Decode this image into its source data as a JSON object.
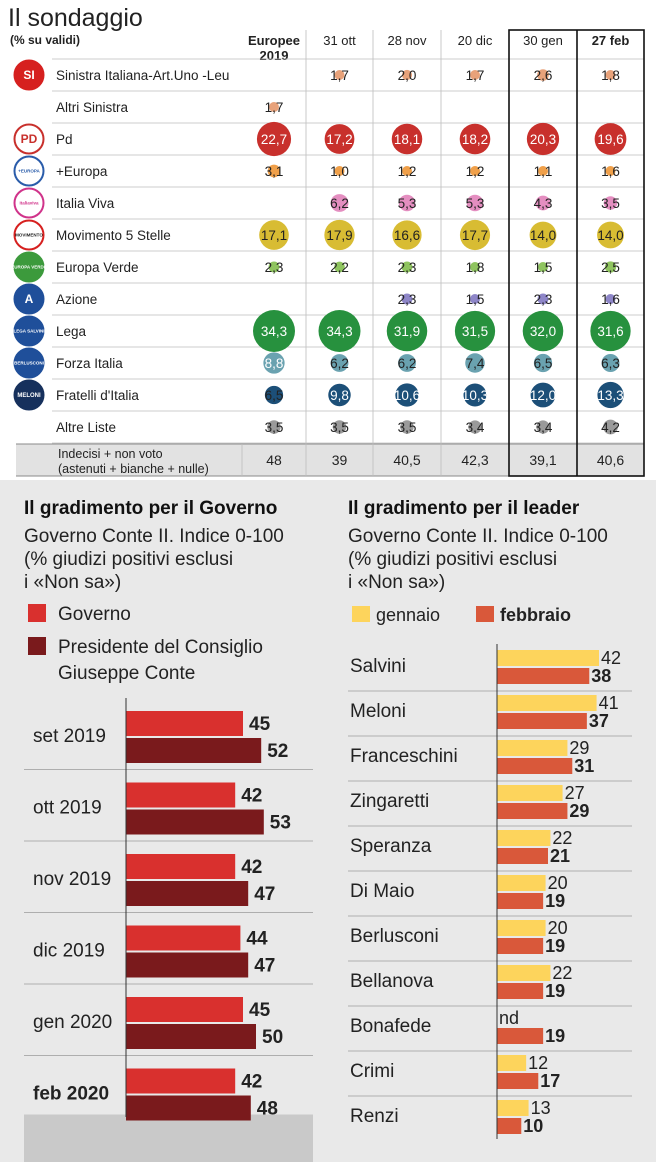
{
  "poll": {
    "title": "Il sondaggio",
    "subtitle": "(% su validi)",
    "columns": [
      {
        "label1": "Europee",
        "label2": "2019"
      },
      {
        "label1": "31 ott",
        "label2": ""
      },
      {
        "label1": "28 nov",
        "label2": ""
      },
      {
        "label1": "20 dic",
        "label2": ""
      },
      {
        "label1": "30 gen",
        "label2": ""
      },
      {
        "label1": "27 feb",
        "label2": ""
      }
    ],
    "parties": [
      {
        "name": "Sinistra Italiana-Art.Uno -Leu",
        "color": "#e8a27a",
        "logo_color": "#d6201f",
        "values": [
          null,
          "1,7",
          "2,0",
          "1,7",
          "2,6",
          "1,8"
        ],
        "nums": [
          null,
          1.7,
          2.0,
          1.7,
          2.6,
          1.8
        ]
      },
      {
        "name": "Altri Sinistra",
        "color": "#e8a27a",
        "logo_color": null,
        "values": [
          "1,7",
          null,
          null,
          null,
          null,
          null
        ],
        "nums": [
          1.7,
          null,
          null,
          null,
          null,
          null
        ]
      },
      {
        "name": "Pd",
        "color": "#c8302c",
        "logo_color": "#c8302c",
        "values": [
          "22,7",
          "17,2",
          "18,1",
          "18,2",
          "20,3",
          "19,6"
        ],
        "nums": [
          22.7,
          17.2,
          18.1,
          18.2,
          20.3,
          19.6
        ]
      },
      {
        "name": "+Europa",
        "color": "#f0a04a",
        "logo_color": "#2a5caa",
        "values": [
          "3,1",
          "1,0",
          "1,2",
          "1,2",
          "1,1",
          "1,6"
        ],
        "nums": [
          3.1,
          1.0,
          1.2,
          1.2,
          1.1,
          1.6
        ]
      },
      {
        "name": "Italia Viva",
        "color": "#e48ec0",
        "logo_color": "#d0338a",
        "values": [
          null,
          "6,2",
          "5,3",
          "5,3",
          "4,3",
          "3,5"
        ],
        "nums": [
          null,
          6.2,
          5.3,
          5.3,
          4.3,
          3.5
        ]
      },
      {
        "name": "Movimento 5 Stelle",
        "color": "#d8bc33",
        "logo_color": "#d6201f",
        "values": [
          "17,1",
          "17,9",
          "16,6",
          "17,7",
          "14,0",
          "14,0"
        ],
        "nums": [
          17.1,
          17.9,
          16.6,
          17.7,
          14.0,
          14.0
        ]
      },
      {
        "name": "Europa Verde",
        "color": "#8fc45f",
        "logo_color": "#3c9a3c",
        "values": [
          "2,3",
          "2,2",
          "2,3",
          "1,8",
          "1,5",
          "2,5"
        ],
        "nums": [
          2.3,
          2.2,
          2.3,
          1.8,
          1.5,
          2.5
        ]
      },
      {
        "name": "Azione",
        "color": "#8e86c8",
        "logo_color": "#1f4f9a",
        "values": [
          null,
          null,
          "2,3",
          "1,5",
          "2,3",
          "1,6"
        ],
        "nums": [
          null,
          null,
          2.3,
          1.5,
          2.3,
          1.6
        ]
      },
      {
        "name": "Lega",
        "color": "#27913e",
        "logo_color": "#1f4f9a",
        "values": [
          "34,3",
          "34,3",
          "31,9",
          "31,5",
          "32,0",
          "31,6"
        ],
        "nums": [
          34.3,
          34.3,
          31.9,
          31.5,
          32.0,
          31.6
        ]
      },
      {
        "name": "Forza Italia",
        "color": "#6aa2b0",
        "logo_color": "#1f4f9a",
        "values": [
          "8,8",
          "6,2",
          "6,2",
          "7,4",
          "6,5",
          "6,3"
        ],
        "nums": [
          8.8,
          6.2,
          6.2,
          7.4,
          6.5,
          6.3
        ]
      },
      {
        "name": "Fratelli d'Italia",
        "color": "#1c4f78",
        "logo_color": "#16305c",
        "values": [
          "6,5",
          "9,8",
          "10,6",
          "10,3",
          "12,0",
          "13,3"
        ],
        "nums": [
          6.5,
          9.8,
          10.6,
          10.3,
          12.0,
          13.3
        ]
      },
      {
        "name": "Altre Liste",
        "color": "#9a9a9a",
        "logo_color": null,
        "values": [
          "3,5",
          "3,5",
          "3,5",
          "3,4",
          "3,4",
          "4,2"
        ],
        "nums": [
          3.5,
          3.5,
          3.5,
          3.4,
          3.4,
          4.2
        ]
      }
    ],
    "logos": [
      {
        "text": "SI",
        "text_color": "#ffffff"
      },
      null,
      {
        "text": "PD",
        "text_color": "#c8302c"
      },
      {
        "text": "+EUROPA",
        "text_color": "#2a5caa"
      },
      {
        "text": "italiaviva",
        "text_color": "#d0338a"
      },
      {
        "text": "MOVIMENTO",
        "text_color": "#222222"
      },
      {
        "text": "EUROPA VERDE",
        "text_color": "#ffffff"
      },
      {
        "text": "A",
        "text_color": "#ffffff"
      },
      {
        "text": "LEGA SALVINI",
        "text_color": "#ffffff"
      },
      {
        "text": "BERLUSCONI",
        "text_color": "#ffffff"
      },
      {
        "text": "MELONI",
        "text_color": "#ffffff"
      },
      null
    ],
    "undecided": {
      "label1": "Indecisi  + non voto",
      "label2": "(astenuti  + bianche  + nulle)",
      "values": [
        "48",
        "39",
        "40,5",
        "42,3",
        "39,1",
        "40,6"
      ]
    }
  },
  "chart_data": [
    {
      "type": "bar",
      "title": "Il gradimento per il Governo",
      "subtitle": "Governo Conte II. Indice 0-100 (% giudizi positivi esclusi i «Non sa»)",
      "subtitle_lines": [
        "Governo Conte II. Indice 0-100",
        "(% giudizi positivi esclusi",
        "i «Non sa»)"
      ],
      "categories": [
        "set 2019",
        "ott 2019",
        "nov 2019",
        "dic 2019",
        "gen 2020",
        "feb 2020"
      ],
      "series": [
        {
          "name": "Governo",
          "name_lines": [
            "Governo"
          ],
          "color": "#d9302e",
          "values": [
            45,
            42,
            42,
            44,
            45,
            42
          ]
        },
        {
          "name": "Presidente del Consiglio Giuseppe Conte",
          "name_lines": [
            "Presidente del Consiglio",
            "Giuseppe Conte"
          ],
          "color": "#7a1a1c",
          "values": [
            52,
            53,
            47,
            47,
            50,
            48
          ]
        }
      ],
      "highlight_category": "feb 2020"
    },
    {
      "type": "bar",
      "title": "Il gradimento per il leader",
      "subtitle": "Governo Conte II. Indice 0-100 (% giudizi positivi esclusi i «Non sa»)",
      "subtitle_lines": [
        "Governo Conte II. Indice 0-100",
        "(% giudizi positivi esclusi",
        "i «Non sa»)"
      ],
      "categories": [
        "Salvini",
        "Meloni",
        "Franceschini",
        "Zingaretti",
        "Speranza",
        "Di Maio",
        "Berlusconi",
        "Bellanova",
        "Bonafede",
        "Crimi",
        "Renzi"
      ],
      "series": [
        {
          "name": "gennaio",
          "color": "#fdd45c",
          "values": [
            42,
            41,
            29,
            27,
            22,
            20,
            20,
            22,
            null,
            12,
            13
          ],
          "labels": [
            "42",
            "41",
            "29",
            "27",
            "22",
            "20",
            "20",
            "22",
            "nd",
            "12",
            "13"
          ]
        },
        {
          "name": "febbraio",
          "color": "#d9583a",
          "values": [
            38,
            37,
            31,
            29,
            21,
            19,
            19,
            19,
            19,
            17,
            10
          ],
          "labels": [
            "38",
            "37",
            "31",
            "29",
            "21",
            "19",
            "19",
            "19",
            "19",
            "17",
            "10"
          ]
        }
      ]
    }
  ]
}
